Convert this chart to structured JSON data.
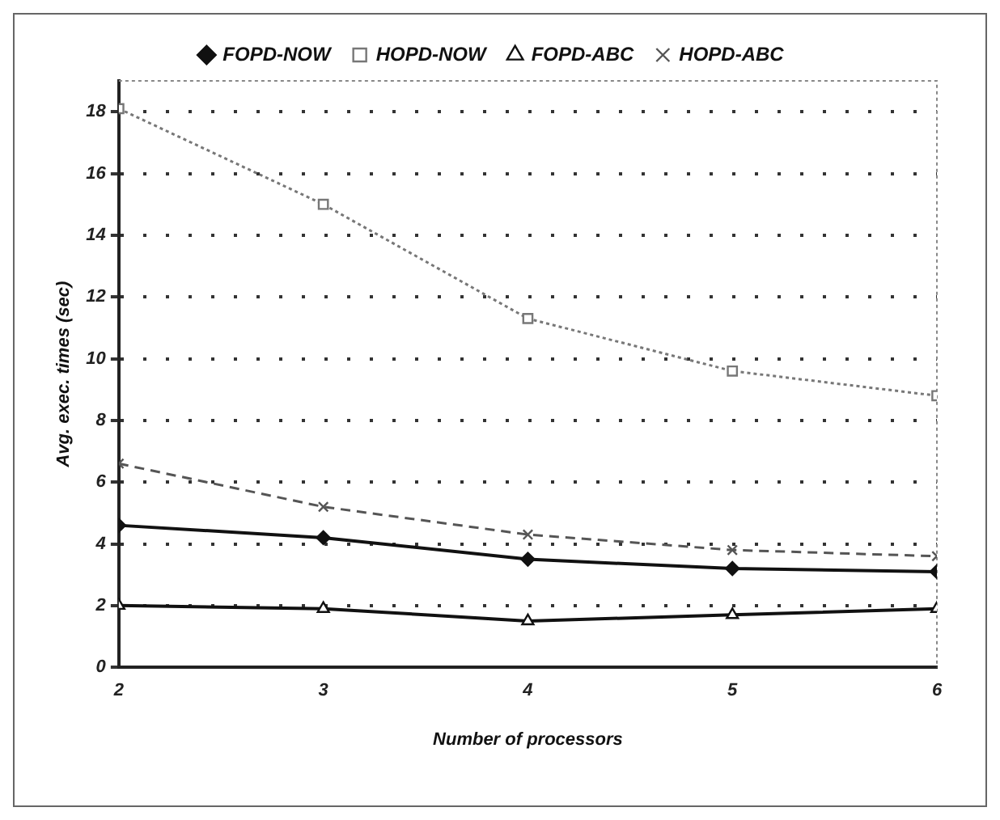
{
  "chart_data": {
    "type": "line",
    "xlabel": "Number of processors",
    "ylabel": "Avg. exec. times (sec)",
    "x": [
      2,
      3,
      4,
      5,
      6
    ],
    "xlim": [
      2,
      6
    ],
    "xticks": [
      2,
      3,
      4,
      5,
      6
    ],
    "ylim": [
      0,
      19
    ],
    "yticks": [
      0,
      2,
      4,
      6,
      8,
      10,
      12,
      14,
      16,
      18
    ],
    "grid": "y",
    "legend": "top",
    "series": [
      {
        "name": "FOPD-NOW",
        "color": "#111111",
        "marker": "diamond",
        "line_style": "solid",
        "values": [
          4.6,
          4.2,
          3.5,
          3.2,
          3.1
        ]
      },
      {
        "name": "HOPD-NOW",
        "color": "#777777",
        "marker": "square",
        "line_style": "dotted",
        "values": [
          18.1,
          15.0,
          11.3,
          9.6,
          8.8
        ]
      },
      {
        "name": "FOPD-ABC",
        "color": "#111111",
        "marker": "triangle",
        "line_style": "solid",
        "values": [
          2.0,
          1.9,
          1.5,
          1.7,
          1.9
        ]
      },
      {
        "name": "HOPD-ABC",
        "color": "#555555",
        "marker": "cross",
        "line_style": "dashed",
        "values": [
          6.6,
          5.2,
          4.3,
          3.8,
          3.6
        ]
      }
    ]
  }
}
